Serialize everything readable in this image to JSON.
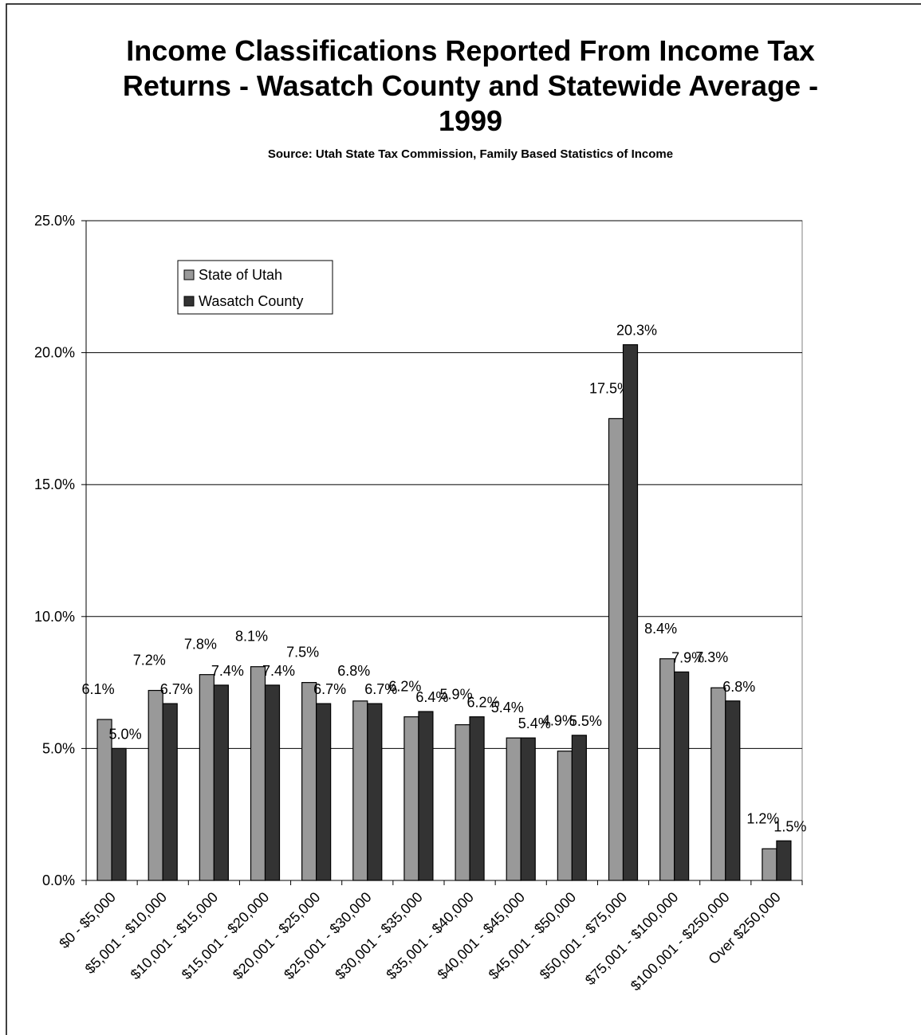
{
  "chart_data": {
    "type": "bar",
    "title": "Income Classifications Reported From Income Tax Returns - Wasatch County and Statewide Average - 1999",
    "subtitle": "Source: Utah State Tax Commission, Family Based Statistics of Income",
    "categories": [
      "$0 - $5,000",
      "$5,001 - $10,000",
      "$10,001 - $15,000",
      "$15,001 - $20,000",
      "$20,001 - $25,000",
      "$25,001 - $30,000",
      "$30,001 - $35,000",
      "$35,001 - $40,000",
      "$40,001 - $45,000",
      "$45,001 - $50,000",
      "$50,001 - $75,000",
      "$75,001 - $100,000",
      "$100,001 - $250,000",
      "Over $250,000"
    ],
    "series": [
      {
        "name": "State of Utah",
        "color": "#999999",
        "values": [
          6.1,
          7.2,
          7.8,
          8.1,
          7.5,
          6.8,
          6.2,
          5.9,
          5.4,
          4.9,
          17.5,
          8.4,
          7.3,
          1.2
        ],
        "value_labels": [
          "6.1%",
          "7.2%",
          "7.8%",
          "8.1%",
          "7.5%",
          "6.8%",
          "6.2%",
          "5.9%",
          "5.4%",
          "4.9%",
          "17.5%",
          "8.4%",
          "7.3%",
          "1.2%"
        ]
      },
      {
        "name": "Wasatch County",
        "color": "#333333",
        "values": [
          5.0,
          6.7,
          7.4,
          7.4,
          6.7,
          6.7,
          6.4,
          6.2,
          5.4,
          5.5,
          20.3,
          7.9,
          6.8,
          1.5
        ],
        "value_labels": [
          "5.0%",
          "6.7%",
          "7.4%",
          "7.4%",
          "6.7%",
          "6.7%",
          "6.4%",
          "6.2%",
          "5.4%",
          "5.5%",
          "20.3%",
          "7.9%",
          "6.8%",
          "1.5%"
        ]
      }
    ],
    "ylim": [
      0,
      25
    ],
    "yticks": [
      {
        "value": 0,
        "label": "0.0%"
      },
      {
        "value": 5,
        "label": "5.0%"
      },
      {
        "value": 10,
        "label": "10.0%"
      },
      {
        "value": 15,
        "label": "15.0%"
      },
      {
        "value": 20,
        "label": "20.0%"
      },
      {
        "value": 25,
        "label": "25.0%"
      }
    ],
    "grid": true,
    "legend": "upper-left"
  }
}
